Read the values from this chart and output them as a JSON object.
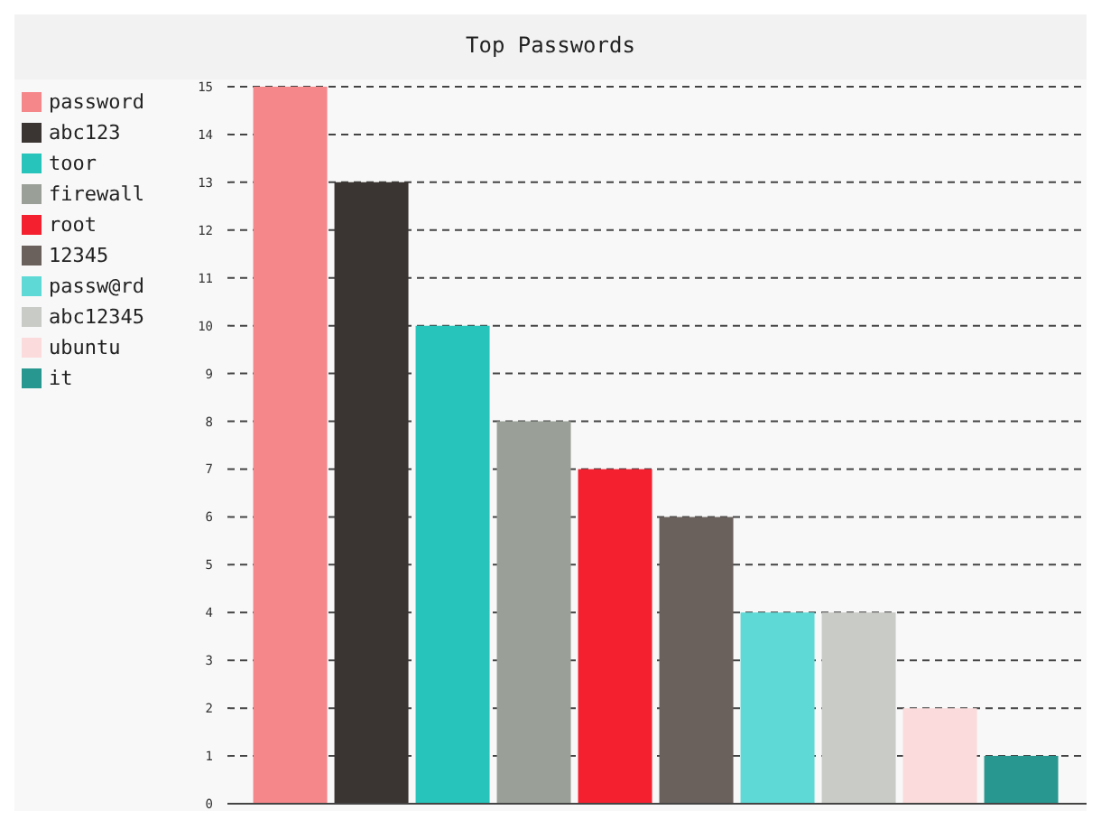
{
  "chart_data": {
    "type": "bar",
    "title": "Top Passwords",
    "categories": [
      null
    ],
    "series": [
      {
        "name": "password",
        "color": "#f5878b",
        "values": [
          15
        ]
      },
      {
        "name": "abc123",
        "color": "#3a3532",
        "values": [
          13
        ]
      },
      {
        "name": "toor",
        "color": "#26c4ba",
        "values": [
          10
        ]
      },
      {
        "name": "firewall",
        "color": "#9aa097",
        "values": [
          8
        ]
      },
      {
        "name": "root",
        "color": "#f5202f",
        "values": [
          7
        ]
      },
      {
        "name": "12345",
        "color": "#6a605c",
        "values": [
          6
        ]
      },
      {
        "name": "passw@rd",
        "color": "#5fd9d6",
        "values": [
          4
        ]
      },
      {
        "name": "abc12345",
        "color": "#c8cbc6",
        "values": [
          4
        ]
      },
      {
        "name": "ubuntu",
        "color": "#fbdbdc",
        "values": [
          2
        ]
      },
      {
        "name": "it",
        "color": "#27978f",
        "values": [
          1
        ]
      }
    ],
    "ylim": [
      0,
      15
    ],
    "yticks": [
      0,
      1,
      2,
      3,
      4,
      5,
      6,
      7,
      8,
      9,
      10,
      11,
      12,
      13,
      14,
      15
    ],
    "grid": "y",
    "legend": "left",
    "tick_labels": "y"
  }
}
